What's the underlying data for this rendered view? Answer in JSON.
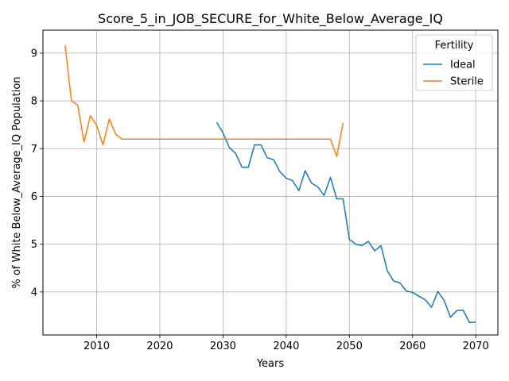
{
  "chart_data": {
    "type": "line",
    "title": "Score_5_in_JOB_SECURE_for_White_Below_Average_IQ",
    "xlabel": "Years",
    "ylabel": "% of White Below_Average_IQ Population",
    "xlim": [
      2001.5,
      2073.5
    ],
    "ylim": [
      3.1,
      9.48
    ],
    "xticks": [
      2010,
      2020,
      2030,
      2040,
      2050,
      2060,
      2070
    ],
    "yticks": [
      4,
      5,
      6,
      7,
      8,
      9
    ],
    "grid": true,
    "legend": {
      "title": "Fertility",
      "placement": "top-right"
    },
    "series": [
      {
        "name": "Ideal",
        "color": "#1f77b4",
        "x": [
          2029,
          2030,
          2031,
          2032,
          2033,
          2034,
          2035,
          2036,
          2037,
          2038,
          2039,
          2040,
          2041,
          2042,
          2043,
          2044,
          2045,
          2046,
          2047,
          2048,
          2049,
          2050,
          2051,
          2052,
          2053,
          2054,
          2055,
          2056,
          2057,
          2058,
          2059,
          2060,
          2061,
          2062,
          2063,
          2064,
          2065,
          2066,
          2067,
          2068,
          2069,
          2070
        ],
        "y": [
          7.55,
          7.33,
          7.02,
          6.9,
          6.61,
          6.61,
          7.08,
          7.08,
          6.81,
          6.77,
          6.52,
          6.38,
          6.33,
          6.12,
          6.54,
          6.28,
          6.2,
          6.02,
          6.4,
          5.95,
          5.95,
          5.1,
          5.0,
          4.97,
          5.06,
          4.86,
          4.97,
          4.44,
          4.23,
          4.19,
          4.02,
          3.99,
          3.91,
          3.84,
          3.68,
          4.01,
          3.82,
          3.47,
          3.61,
          3.62,
          3.36,
          3.37
        ]
      },
      {
        "name": "Sterile",
        "color": "#ff7f0e",
        "x": [
          2005,
          2006,
          2007,
          2008,
          2009,
          2010,
          2011,
          2012,
          2013,
          2014,
          2015,
          2016,
          2017,
          2018,
          2019,
          2020,
          2021,
          2022,
          2023,
          2024,
          2025,
          2026,
          2027,
          2028,
          2029,
          2030,
          2031,
          2032,
          2033,
          2034,
          2035,
          2036,
          2037,
          2038,
          2039,
          2040,
          2041,
          2042,
          2043,
          2044,
          2045,
          2046,
          2047,
          2048,
          2049
        ],
        "y": [
          9.17,
          8.0,
          7.91,
          7.14,
          7.69,
          7.49,
          7.08,
          7.62,
          7.3,
          7.2,
          7.2,
          7.2,
          7.2,
          7.2,
          7.2,
          7.2,
          7.2,
          7.2,
          7.2,
          7.2,
          7.2,
          7.2,
          7.2,
          7.2,
          7.2,
          7.2,
          7.2,
          7.2,
          7.2,
          7.2,
          7.2,
          7.2,
          7.2,
          7.2,
          7.2,
          7.2,
          7.2,
          7.2,
          7.2,
          7.2,
          7.2,
          7.2,
          7.2,
          6.84,
          7.54
        ]
      }
    ]
  }
}
